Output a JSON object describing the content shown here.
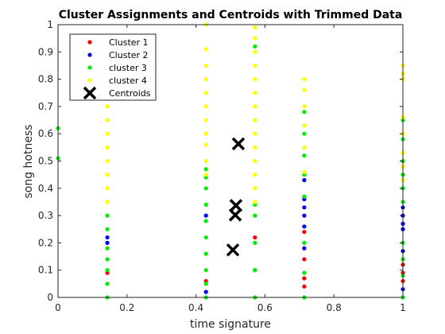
{
  "chart_data": {
    "type": "scatter",
    "title": "Cluster Assignments and Centroids with Trimmed Data",
    "xlabel": "time signature",
    "ylabel": "song hotness",
    "xlim": [
      0,
      1
    ],
    "ylim": [
      0,
      1
    ],
    "x_ticks": [
      "0",
      "0.2",
      "0.4",
      "0.6",
      "0.8",
      "1"
    ],
    "y_ticks": [
      "0",
      "0.1",
      "0.2",
      "0.3",
      "0.4",
      "0.5",
      "0.6",
      "0.7",
      "0.8",
      "0.9",
      "1"
    ],
    "grid": false,
    "legend_position": "top-left",
    "legend": [
      "Cluster 1",
      "Cluster 2",
      "cluster 3",
      "cluster 4",
      "Centroids"
    ],
    "series": [
      {
        "name": "Cluster 1",
        "color": "#ff0000",
        "points": [
          [
            0.714,
            0.14
          ],
          [
            0.714,
            0.07
          ],
          [
            0.714,
            0.04
          ],
          [
            0.571,
            0.22
          ],
          [
            0.429,
            0.06
          ],
          [
            1,
            0.09
          ],
          [
            1,
            0.12
          ],
          [
            0.143,
            0.09
          ],
          [
            0.714,
            0.24
          ],
          [
            1,
            0.06
          ]
        ]
      },
      {
        "name": "Cluster 2",
        "color": "#0000ff",
        "points": [
          [
            0.143,
            0.2
          ],
          [
            0.143,
            0.22
          ],
          [
            0.429,
            0.3
          ],
          [
            0.429,
            0.02
          ],
          [
            0.714,
            0.26
          ],
          [
            0.714,
            0.3
          ],
          [
            0.714,
            0.33
          ],
          [
            0.714,
            0.36
          ],
          [
            0.714,
            0.43
          ],
          [
            0.714,
            0.18
          ],
          [
            1,
            0.33
          ],
          [
            1,
            0.3
          ],
          [
            1,
            0.27
          ],
          [
            1,
            0.25
          ],
          [
            1,
            0.17
          ],
          [
            1,
            0.03
          ],
          [
            0.571,
            0.1
          ]
        ]
      },
      {
        "name": "cluster 3",
        "color": "#00ee00",
        "points": [
          [
            0,
            0.62
          ],
          [
            0,
            0.51
          ],
          [
            0.143,
            0.0
          ],
          [
            0.143,
            0.05
          ],
          [
            0.143,
            0.1
          ],
          [
            0.143,
            0.14
          ],
          [
            0.143,
            0.18
          ],
          [
            0.143,
            0.25
          ],
          [
            0.143,
            0.3
          ],
          [
            0.143,
            0.35
          ],
          [
            0.429,
            0.0
          ],
          [
            0.429,
            0.05
          ],
          [
            0.429,
            0.1
          ],
          [
            0.429,
            0.16
          ],
          [
            0.429,
            0.22
          ],
          [
            0.429,
            0.28
          ],
          [
            0.429,
            0.34
          ],
          [
            0.429,
            0.4
          ],
          [
            0.429,
            0.44
          ],
          [
            0.429,
            0.47
          ],
          [
            0.571,
            0.0
          ],
          [
            0.571,
            0.1
          ],
          [
            0.571,
            0.2
          ],
          [
            0.571,
            0.3
          ],
          [
            0.571,
            0.34
          ],
          [
            0.571,
            0.92
          ],
          [
            0.714,
            0.0
          ],
          [
            0.714,
            0.09
          ],
          [
            0.714,
            0.2
          ],
          [
            0.714,
            0.37
          ],
          [
            0.714,
            0.45
          ],
          [
            0.714,
            0.52
          ],
          [
            0.714,
            0.6
          ],
          [
            0.714,
            0.68
          ],
          [
            1,
            0.0
          ],
          [
            1,
            0.08
          ],
          [
            1,
            0.14
          ],
          [
            1,
            0.2
          ],
          [
            1,
            0.35
          ],
          [
            1,
            0.4
          ],
          [
            1,
            0.45
          ],
          [
            1,
            0.5
          ],
          [
            1,
            0.58
          ],
          [
            1,
            0.65
          ]
        ]
      },
      {
        "name": "cluster 4",
        "color": "#ffff00",
        "points": [
          [
            0.143,
            0.35
          ],
          [
            0.143,
            0.4
          ],
          [
            0.143,
            0.45
          ],
          [
            0.143,
            0.5
          ],
          [
            0.143,
            0.55
          ],
          [
            0.143,
            0.6
          ],
          [
            0.143,
            0.65
          ],
          [
            0.143,
            0.7
          ],
          [
            0.429,
            0.45
          ],
          [
            0.429,
            0.5
          ],
          [
            0.429,
            0.56
          ],
          [
            0.429,
            0.6
          ],
          [
            0.429,
            0.65
          ],
          [
            0.429,
            0.7
          ],
          [
            0.429,
            0.75
          ],
          [
            0.429,
            0.8
          ],
          [
            0.429,
            0.85
          ],
          [
            0.429,
            0.91
          ],
          [
            0.429,
            1.0
          ],
          [
            0.571,
            0.35
          ],
          [
            0.571,
            0.4
          ],
          [
            0.571,
            0.45
          ],
          [
            0.571,
            0.5
          ],
          [
            0.571,
            0.55
          ],
          [
            0.571,
            0.6
          ],
          [
            0.571,
            0.65
          ],
          [
            0.571,
            0.7
          ],
          [
            0.571,
            0.75
          ],
          [
            0.571,
            0.8
          ],
          [
            0.571,
            0.85
          ],
          [
            0.571,
            0.9
          ],
          [
            0.571,
            0.95
          ],
          [
            0.571,
            0.99
          ],
          [
            0.714,
            0.46
          ],
          [
            0.714,
            0.55
          ],
          [
            0.714,
            0.63
          ],
          [
            0.714,
            0.7
          ],
          [
            0.714,
            0.76
          ],
          [
            0.714,
            0.8
          ],
          [
            1,
            0.43
          ],
          [
            1,
            0.48
          ],
          [
            1,
            0.53
          ],
          [
            1,
            0.6
          ],
          [
            1,
            0.66
          ],
          [
            1,
            0.8
          ],
          [
            1,
            0.82
          ],
          [
            1,
            0.85
          ]
        ]
      }
    ],
    "centroids": {
      "name": "Centroids",
      "color": "#000000",
      "points": [
        [
          0.523,
          0.563
        ],
        [
          0.516,
          0.337
        ],
        [
          0.514,
          0.302
        ],
        [
          0.507,
          0.174
        ]
      ]
    }
  }
}
